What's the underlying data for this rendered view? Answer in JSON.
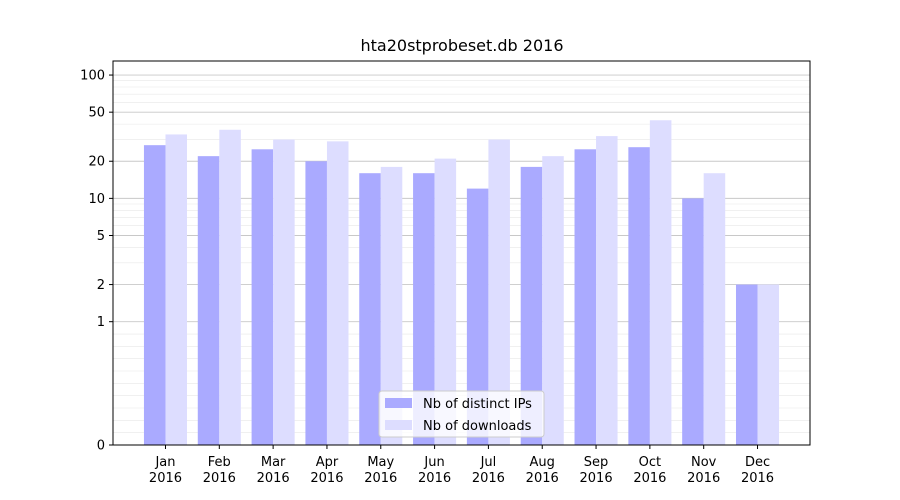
{
  "chart_data": {
    "type": "bar",
    "title": "hta20stprobeset.db 2016",
    "xlabel": "",
    "ylabel": "",
    "y_scale": "symlog",
    "ylim": [
      0,
      130
    ],
    "y_ticks": [
      0,
      1,
      2,
      5,
      10,
      20,
      50,
      100
    ],
    "y_tick_labels": [
      "0",
      "1",
      "2",
      "5",
      "10",
      "20",
      "50",
      "100"
    ],
    "grid": "y",
    "legend_position": "bottom-center",
    "categories": [
      {
        "month": "Jan",
        "year": "2016"
      },
      {
        "month": "Feb",
        "year": "2016"
      },
      {
        "month": "Mar",
        "year": "2016"
      },
      {
        "month": "Apr",
        "year": "2016"
      },
      {
        "month": "May",
        "year": "2016"
      },
      {
        "month": "Jun",
        "year": "2016"
      },
      {
        "month": "Jul",
        "year": "2016"
      },
      {
        "month": "Aug",
        "year": "2016"
      },
      {
        "month": "Sep",
        "year": "2016"
      },
      {
        "month": "Oct",
        "year": "2016"
      },
      {
        "month": "Nov",
        "year": "2016"
      },
      {
        "month": "Dec",
        "year": "2016"
      }
    ],
    "series": [
      {
        "name": "Nb of distinct IPs",
        "color": "#aaaaff",
        "values": [
          27,
          22,
          25,
          20,
          16,
          16,
          12,
          18,
          25,
          26,
          10,
          2
        ]
      },
      {
        "name": "Nb of downloads",
        "color": "#ddddff",
        "values": [
          33,
          36,
          30,
          29,
          18,
          21,
          30,
          22,
          32,
          43,
          16,
          2
        ]
      }
    ]
  }
}
